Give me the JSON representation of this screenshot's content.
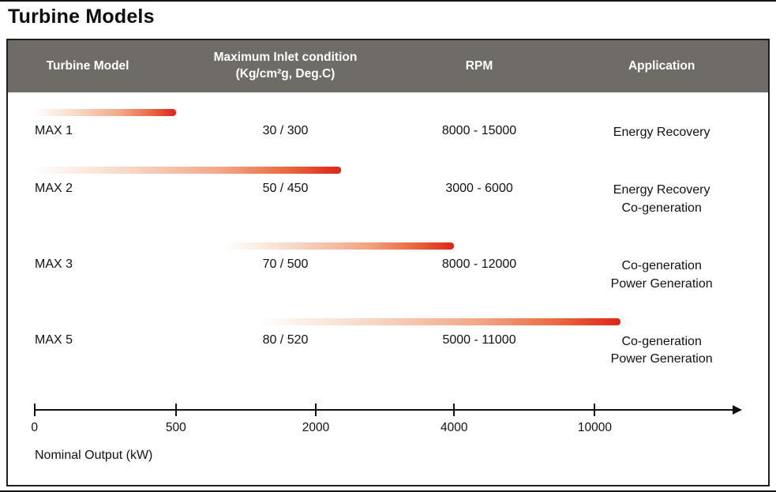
{
  "page": {
    "title": "Turbine Models"
  },
  "table": {
    "headers": {
      "model": "Turbine Model",
      "inlet_line1": "Maximum Inlet condition",
      "inlet_line2": "(Kg/cm²g, Deg.C)",
      "rpm": "RPM",
      "application": "Application"
    },
    "rows": [
      {
        "model": "MAX 1",
        "inlet": "30 / 300",
        "rpm": "8000 - 15000",
        "application": [
          "Energy Recovery"
        ],
        "bar": {
          "start_pct": 3.5,
          "end_pct": 22.1
        }
      },
      {
        "model": "MAX 2",
        "inlet": "50 / 450",
        "rpm": "3000 - 6000",
        "application": [
          "Energy Recovery",
          "Co-generation"
        ],
        "bar": {
          "start_pct": 3.5,
          "end_pct": 43.8
        }
      },
      {
        "model": "MAX 3",
        "inlet": "70 / 500",
        "rpm": "8000 - 12000",
        "application": [
          "Co-generation",
          "Power Generation"
        ],
        "bar": {
          "start_pct": 28.6,
          "end_pct": 58.7
        }
      },
      {
        "model": "MAX 5",
        "inlet": "80 / 520",
        "rpm": "5000 - 11000",
        "application": [
          "Co-generation",
          "Power Generation"
        ],
        "bar": {
          "start_pct": 33.3,
          "end_pct": 80.6
        }
      }
    ]
  },
  "axis": {
    "label": "Nominal Output (kW)",
    "line_start_pct": 3.5,
    "line_end_pct": 95.3,
    "ticks": [
      {
        "label": "0",
        "pct": 3.5
      },
      {
        "label": "500",
        "pct": 22.1
      },
      {
        "label": "2000",
        "pct": 40.5
      },
      {
        "label": "4000",
        "pct": 58.7
      },
      {
        "label": "10000",
        "pct": 77.2
      }
    ]
  },
  "colors": {
    "header_bg": "#6f6b67",
    "bar_red": "#e0241a",
    "bar_fade": "#fdf6f3"
  },
  "chart_data": {
    "type": "bar",
    "orientation": "horizontal-range",
    "title": "Turbine Models",
    "xlabel": "Nominal Output (kW)",
    "x_ticks": [
      0,
      500,
      2000,
      4000,
      10000
    ],
    "x_scale": "non-linear (ticks equally spaced)",
    "legend_position": "none",
    "grid": false,
    "series": [
      {
        "name": "MAX 1",
        "output_range_kw": [
          0,
          500
        ],
        "max_inlet_condition": "30 / 300",
        "rpm": "8000 - 15000",
        "application": [
          "Energy Recovery"
        ]
      },
      {
        "name": "MAX 2",
        "output_range_kw": [
          0,
          2400
        ],
        "max_inlet_condition": "50 / 450",
        "rpm": "3000 - 6000",
        "application": [
          "Energy Recovery",
          "Co-generation"
        ]
      },
      {
        "name": "MAX 3",
        "output_range_kw": [
          1000,
          4000
        ],
        "max_inlet_condition": "70 / 500",
        "rpm": "8000 - 12000",
        "application": [
          "Co-generation",
          "Power Generation"
        ]
      },
      {
        "name": "MAX 5",
        "output_range_kw": [
          1500,
          11500
        ],
        "max_inlet_condition": "80 / 520",
        "rpm": "5000 - 11000",
        "application": [
          "Co-generation",
          "Power Generation"
        ]
      }
    ]
  }
}
